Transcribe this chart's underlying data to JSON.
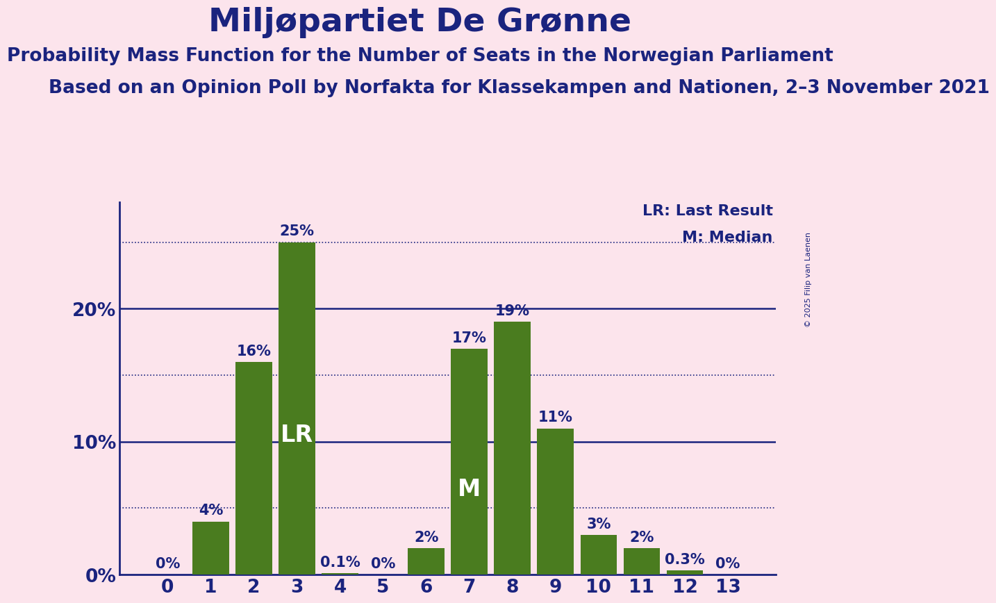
{
  "title": "Miljøpartiet De Grønne",
  "subtitle1": "Probability Mass Function for the Number of Seats in the Norwegian Parliament",
  "subtitle2": "Based on an Opinion Poll by Norfakta for Klassekampen and Nationen, 2–3 November 2021",
  "copyright": "© 2025 Filip van Laenen",
  "categories": [
    0,
    1,
    2,
    3,
    4,
    5,
    6,
    7,
    8,
    9,
    10,
    11,
    12,
    13
  ],
  "values": [
    0.0,
    4.0,
    16.0,
    25.0,
    0.1,
    0.0,
    2.0,
    17.0,
    19.0,
    11.0,
    3.0,
    2.0,
    0.3,
    0.0
  ],
  "labels": [
    "0%",
    "4%",
    "16%",
    "25%",
    "0.1%",
    "0%",
    "2%",
    "17%",
    "19%",
    "11%",
    "3%",
    "2%",
    "0.3%",
    "0%"
  ],
  "bar_color": "#4a7c1f",
  "background_color": "#fce4ec",
  "text_color": "#1a237e",
  "title_fontsize": 34,
  "subtitle1_fontsize": 19,
  "subtitle2_fontsize": 19,
  "label_fontsize": 15,
  "axis_label_fontsize": 19,
  "ytick_labels": [
    "0%",
    "10%",
    "20%"
  ],
  "ytick_values": [
    0,
    10,
    20
  ],
  "ylim": [
    0,
    28
  ],
  "lr_seat": 3,
  "median_seat": 7,
  "lr_label": "LR",
  "median_label": "M",
  "solid_line_y": [
    10,
    20
  ],
  "dotted_line_y": [
    5,
    15,
    25
  ],
  "legend_lr": "LR: Last Result",
  "legend_m": "M: Median",
  "lr_label_fontsize": 24,
  "median_label_fontsize": 24
}
